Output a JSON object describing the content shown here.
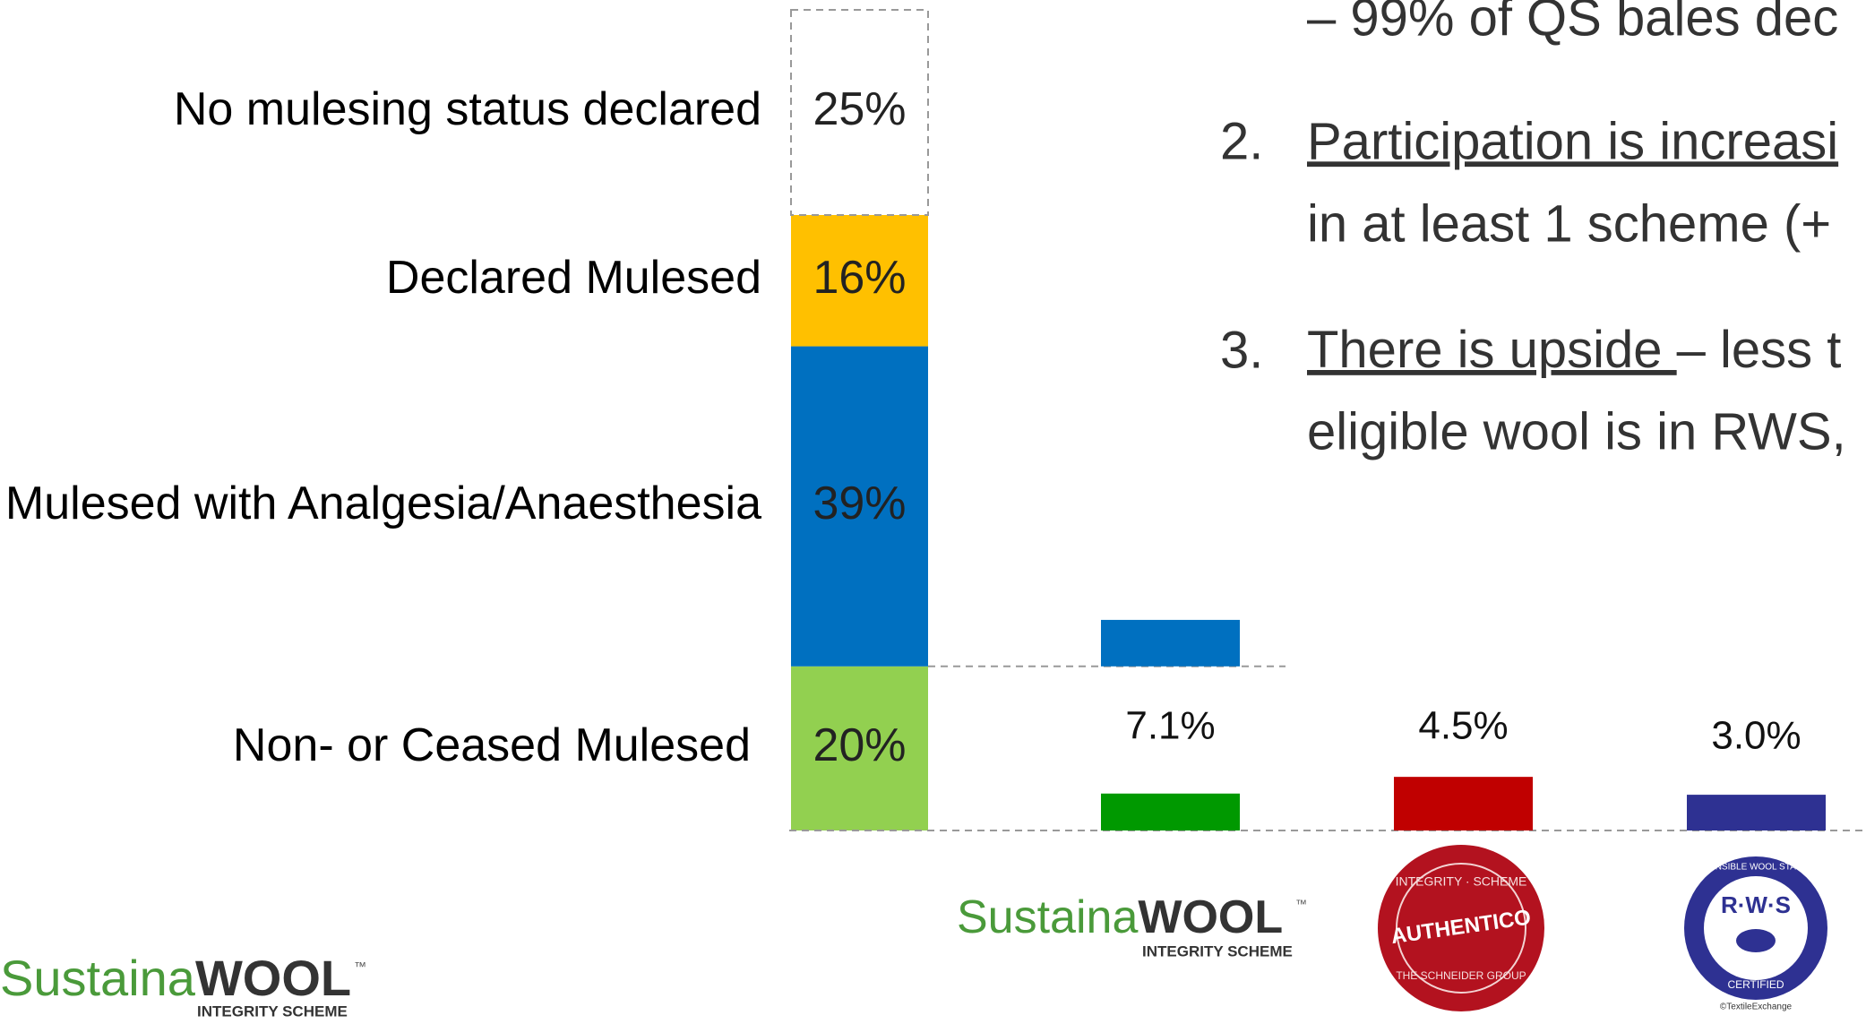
{
  "chart_data": [
    {
      "type": "stacked_bar",
      "series": [
        {
          "name": "Non- or Ceased Mulesed",
          "color": "#92d050",
          "values": [
            20
          ],
          "value_labels": [
            "20%"
          ]
        },
        {
          "name": "Mulesed with Analgesia/Anaesthesia",
          "color": "#0070c0",
          "values": [
            39
          ],
          "value_labels": [
            "39%"
          ]
        },
        {
          "name": "Declared Mulesed",
          "color": "#ffc000",
          "values": [
            16
          ],
          "value_labels": [
            "16%"
          ]
        },
        {
          "name": "No mulesing status declared",
          "color": "#ffffff",
          "values": [
            25
          ],
          "value_labels": [
            "25%"
          ]
        }
      ],
      "ylim": [
        0,
        100
      ]
    },
    {
      "type": "scheme_bar",
      "categories": [
        "SustainaWOOL",
        "AUTHENTICO",
        "R·W·S"
      ],
      "values": [
        7.1,
        4.5,
        3.0
      ],
      "value_labels": [
        "7.1%",
        "4.5%",
        "3.0%"
      ],
      "lower_segments": [
        3.1,
        4.5,
        3.0
      ],
      "lower_colors": [
        "#009900",
        "#c00000",
        "#2e3192"
      ],
      "upper_segments": [
        3.9,
        null,
        null
      ],
      "upper_colors": [
        "#0070c0",
        null,
        null
      ]
    }
  ],
  "bullets": {
    "line0": "– 99% of QS bales dec",
    "item2": {
      "number": "2.",
      "underlined": "Participation is increasi",
      "line2": "in at least 1 scheme (+"
    },
    "item3": {
      "number": "3.",
      "underlined": "There is upside ",
      "rest": "– less t",
      "line2": "eligible wool is in RWS,"
    }
  },
  "logos": {
    "sustainawool": {
      "a": "Sustaina",
      "b": "WOOL",
      "tm": "™",
      "sub": "INTEGRITY SCHEME"
    },
    "authentico": {
      "top": "INTEGRITY · SCHEME",
      "main": "AUTHENTICO",
      "bottom": "THE SCHNEIDER GROUP"
    },
    "rws": {
      "ring": "RESPONSIBLE WOOL STANDARD",
      "main": "R·W·S",
      "certified": "CERTIFIED",
      "credit": "©TextileExchange"
    }
  }
}
